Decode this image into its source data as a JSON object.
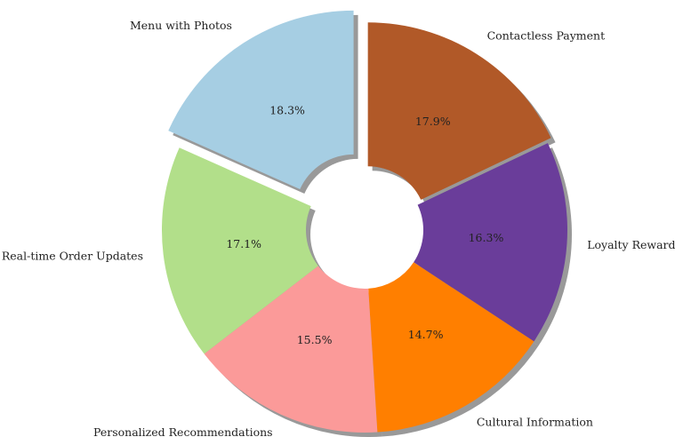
{
  "chart_data": {
    "type": "pie",
    "categories": [
      "Contactless Payment",
      "Loyalty Rewards",
      "Cultural Information",
      "Personalized Recommendations",
      "Real-time Order Updates",
      "Menu with Photos"
    ],
    "values": [
      17.9,
      16.3,
      14.7,
      15.5,
      17.1,
      18.3
    ],
    "value_labels": [
      "17.9%",
      "16.3%",
      "14.7%",
      "15.5%",
      "17.1%",
      "18.3%"
    ],
    "colors": [
      "#b15928",
      "#6a3d9a",
      "#ff7f00",
      "#fb9a99",
      "#b2df8a",
      "#a6cee3"
    ],
    "explode": [
      0.03,
      0,
      0,
      0,
      0,
      0.1
    ],
    "shadow": true
  }
}
